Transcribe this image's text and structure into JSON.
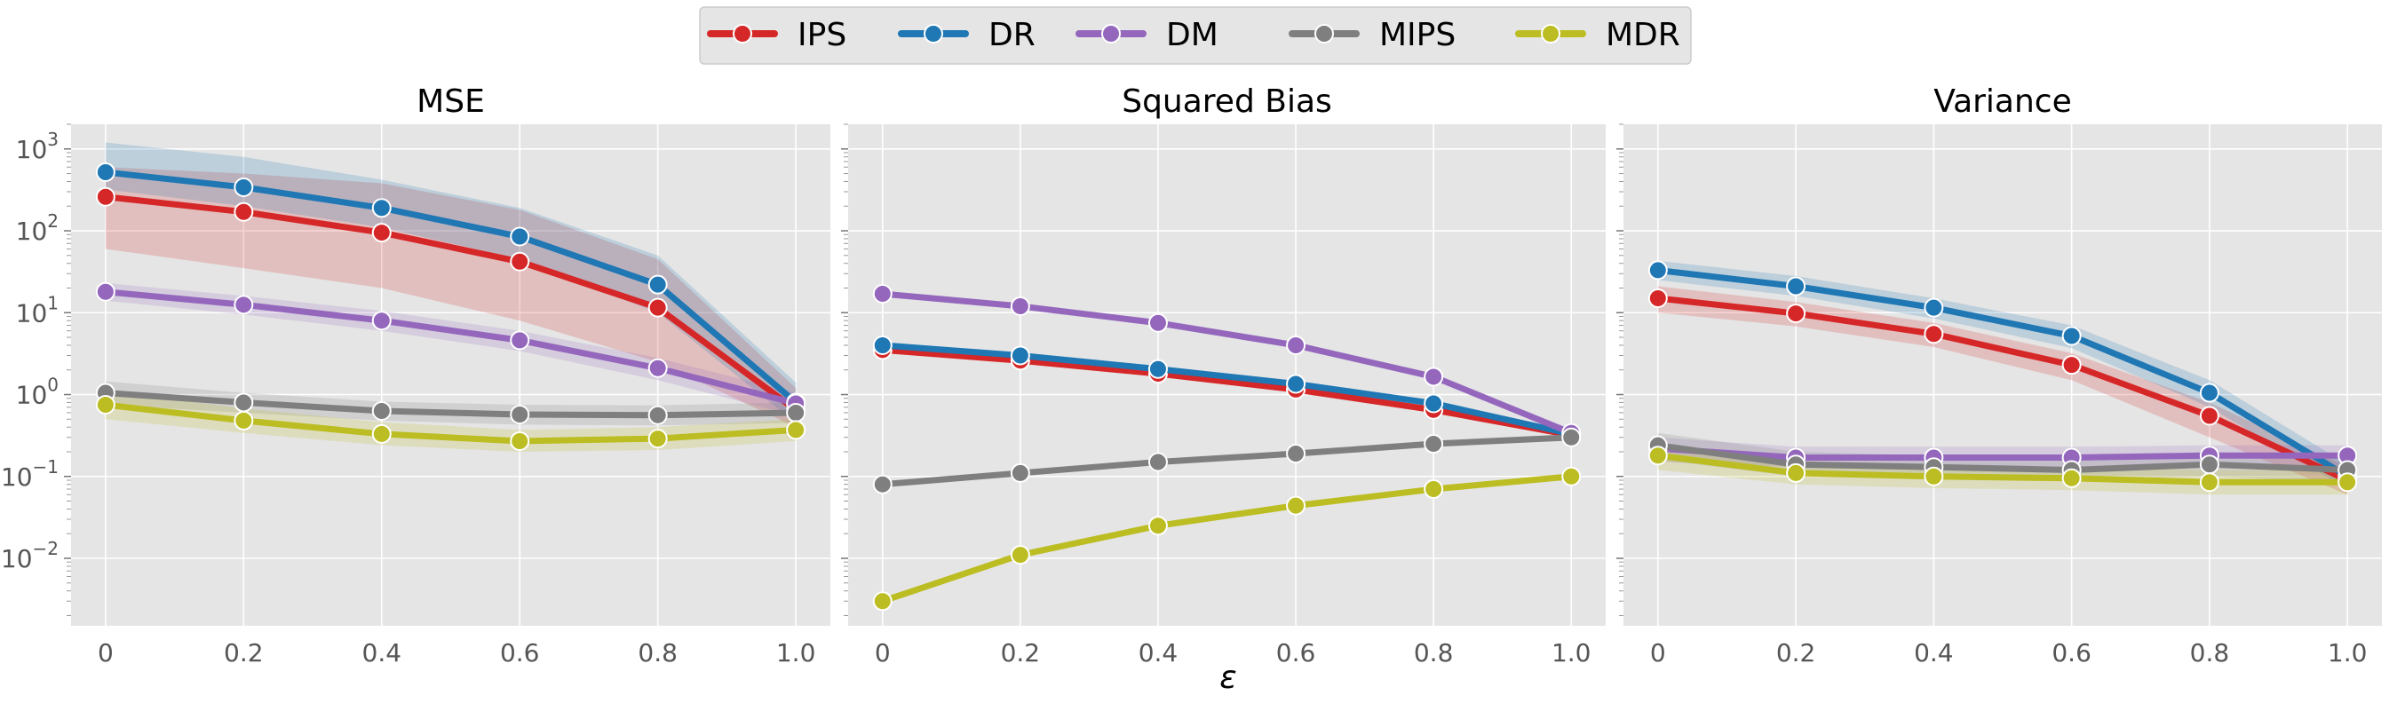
{
  "chart_data": {
    "type": "line",
    "x": [
      0,
      0.2,
      0.4,
      0.6,
      0.8,
      1.0
    ],
    "x_tick_labels": [
      "0",
      "0.2",
      "0.4",
      "0.6",
      "0.8",
      "1.0"
    ],
    "xlabel": "ε",
    "xlim": [
      -0.05,
      1.05
    ],
    "y_scale": "log",
    "y_tick_labels": [
      {
        "base": "10",
        "exp": "−2",
        "value": 0.01
      },
      {
        "base": "10",
        "exp": "−1",
        "value": 0.1
      },
      {
        "base": "10",
        "exp": "0",
        "value": 1
      },
      {
        "base": "10",
        "exp": "1",
        "value": 10
      },
      {
        "base": "10",
        "exp": "2",
        "value": 100
      },
      {
        "base": "10",
        "exp": "3",
        "value": 1000
      }
    ],
    "ylim": [
      0.0015,
      2000
    ],
    "colors": {
      "IPS": "#d62728",
      "DR": "#1f77b4",
      "DM": "#9467bd",
      "MIPS": "#7f7f7f",
      "MDR": "#bcbd22"
    },
    "legend": [
      "IPS",
      "DR",
      "DM",
      "MIPS",
      "MDR"
    ],
    "panels": [
      {
        "title": "MSE",
        "show_y_ticks": true,
        "series": [
          {
            "name": "IPS",
            "values": [
              260,
              170,
              95,
              42,
              11.5,
              0.65
            ],
            "lower": [
              60,
              35,
              20,
              8,
              2.5,
              0.4
            ],
            "upper": [
              600,
              500,
              380,
              180,
              45,
              1.2
            ]
          },
          {
            "name": "DR",
            "values": [
              520,
              340,
              190,
              85,
              22,
              0.8
            ],
            "lower": [
              320,
              200,
              110,
              45,
              10,
              0.45
            ],
            "upper": [
              1200,
              800,
              420,
              190,
              50,
              1.4
            ]
          },
          {
            "name": "DM",
            "values": [
              18,
              12.5,
              8,
              4.6,
              2.1,
              0.78
            ],
            "lower": [
              14,
              9.5,
              6,
              3.4,
              1.5,
              0.55
            ],
            "upper": [
              23,
              16,
              10.5,
              6,
              2.8,
              1.05
            ]
          },
          {
            "name": "MIPS",
            "values": [
              1.05,
              0.8,
              0.63,
              0.57,
              0.56,
              0.6
            ],
            "lower": [
              0.75,
              0.6,
              0.48,
              0.43,
              0.42,
              0.45
            ],
            "upper": [
              1.45,
              1.05,
              0.82,
              0.75,
              0.74,
              0.8
            ]
          },
          {
            "name": "MDR",
            "values": [
              0.75,
              0.48,
              0.33,
              0.27,
              0.29,
              0.37
            ],
            "lower": [
              0.5,
              0.34,
              0.24,
              0.2,
              0.21,
              0.27
            ],
            "upper": [
              1.1,
              0.68,
              0.46,
              0.37,
              0.4,
              0.5
            ]
          }
        ]
      },
      {
        "title": "Squared Bias",
        "show_y_ticks": false,
        "series": [
          {
            "name": "IPS",
            "values": [
              3.5,
              2.6,
              1.8,
              1.15,
              0.65,
              0.32
            ]
          },
          {
            "name": "DR",
            "values": [
              4.0,
              3.0,
              2.05,
              1.35,
              0.78,
              0.33
            ]
          },
          {
            "name": "DM",
            "values": [
              17,
              12,
              7.5,
              4.0,
              1.65,
              0.34
            ]
          },
          {
            "name": "MIPS",
            "values": [
              0.08,
              0.11,
              0.15,
              0.19,
              0.25,
              0.3
            ]
          },
          {
            "name": "MDR",
            "values": [
              0.003,
              0.011,
              0.025,
              0.044,
              0.07,
              0.1
            ]
          }
        ]
      },
      {
        "title": "Variance",
        "show_y_ticks": false,
        "series": [
          {
            "name": "IPS",
            "values": [
              15,
              9.8,
              5.5,
              2.3,
              0.55,
              0.09
            ],
            "lower": [
              10,
              6.8,
              3.8,
              1.5,
              0.3,
              0.06
            ],
            "upper": [
              21,
              13.5,
              7.5,
              3.2,
              0.8,
              0.13
            ]
          },
          {
            "name": "DR",
            "values": [
              33,
              21,
              11.5,
              5.2,
              1.05,
              0.1
            ],
            "lower": [
              25,
              16,
              8.5,
              3.7,
              0.7,
              0.07
            ],
            "upper": [
              43,
              28,
              15,
              7,
              1.5,
              0.14
            ]
          },
          {
            "name": "DM",
            "values": [
              0.22,
              0.17,
              0.17,
              0.17,
              0.18,
              0.18
            ],
            "lower": [
              0.15,
              0.13,
              0.13,
              0.13,
              0.13,
              0.13
            ],
            "upper": [
              0.3,
              0.23,
              0.23,
              0.23,
              0.24,
              0.24
            ]
          },
          {
            "name": "MIPS",
            "values": [
              0.24,
              0.14,
              0.13,
              0.12,
              0.14,
              0.12
            ],
            "lower": [
              0.16,
              0.1,
              0.095,
              0.09,
              0.1,
              0.085
            ],
            "upper": [
              0.34,
              0.2,
              0.18,
              0.17,
              0.2,
              0.17
            ]
          },
          {
            "name": "MDR",
            "values": [
              0.18,
              0.11,
              0.1,
              0.095,
              0.085,
              0.085
            ],
            "lower": [
              0.12,
              0.08,
              0.072,
              0.068,
              0.06,
              0.06
            ],
            "upper": [
              0.26,
              0.15,
              0.14,
              0.13,
              0.12,
              0.12
            ]
          }
        ]
      }
    ]
  }
}
